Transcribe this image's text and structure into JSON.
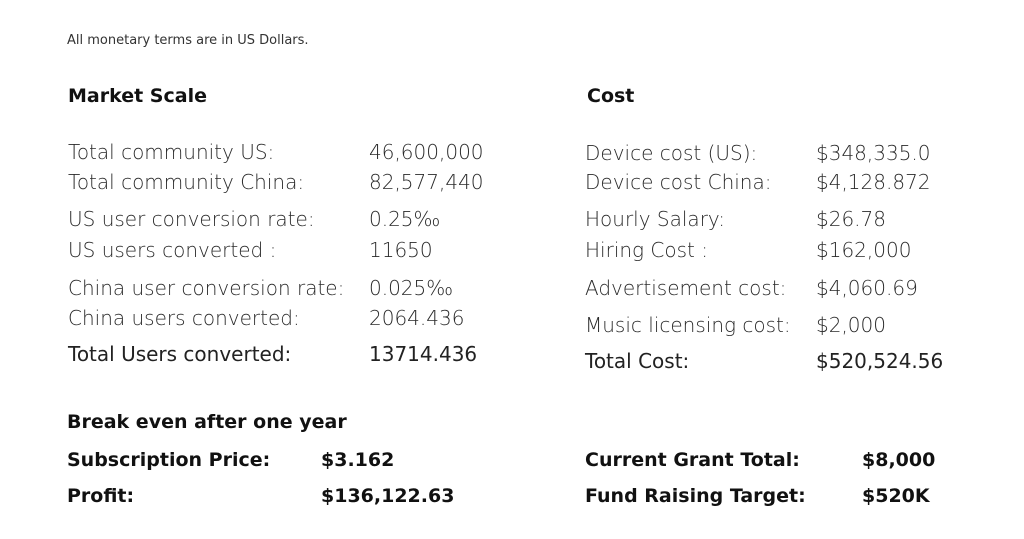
{
  "note": "All monetary terms are in US Dollars.",
  "market": {
    "title": "Market Scale",
    "rows": [
      {
        "label": "Total community US:",
        "value": "46,600,000"
      },
      {
        "label": "Total community China:",
        "value": "82,577,440"
      },
      {
        "label": "US user conversion rate:",
        "value": "0.25‰"
      },
      {
        "label": "US users converted :",
        "value": "11650"
      },
      {
        "label": "China user conversion rate:",
        "value": "0.025‰"
      },
      {
        "label": "China users converted:",
        "value": "2064.436"
      },
      {
        "label": "Total Users converted:",
        "value": "13714.436"
      }
    ]
  },
  "cost": {
    "title": "Cost",
    "rows": [
      {
        "label": "Device cost (US):",
        "value": "$348,335.0"
      },
      {
        "label": "Device cost China:",
        "value": "$4,128.872"
      },
      {
        "label": "Hourly Salary:",
        "value": "$26.78"
      },
      {
        "label": "Hiring Cost :",
        "value": "$162,000"
      },
      {
        "label": "Advertisement cost:",
        "value": "$4,060.69"
      },
      {
        "label": "Music licensing cost:",
        "value": "$2,000"
      },
      {
        "label": "Total Cost:",
        "value": "$520,524.56"
      }
    ]
  },
  "breakeven": {
    "title": "Break even after one year",
    "subscription_label": "Subscription Price:",
    "subscription_value": "$3.162",
    "profit_label": "Profit:",
    "profit_value": "$136,122.63"
  },
  "funding": {
    "grant_label": "Current Grant Total:",
    "grant_value": "$8,000",
    "target_label": "Fund Raising Target:",
    "target_value": "$520K"
  }
}
